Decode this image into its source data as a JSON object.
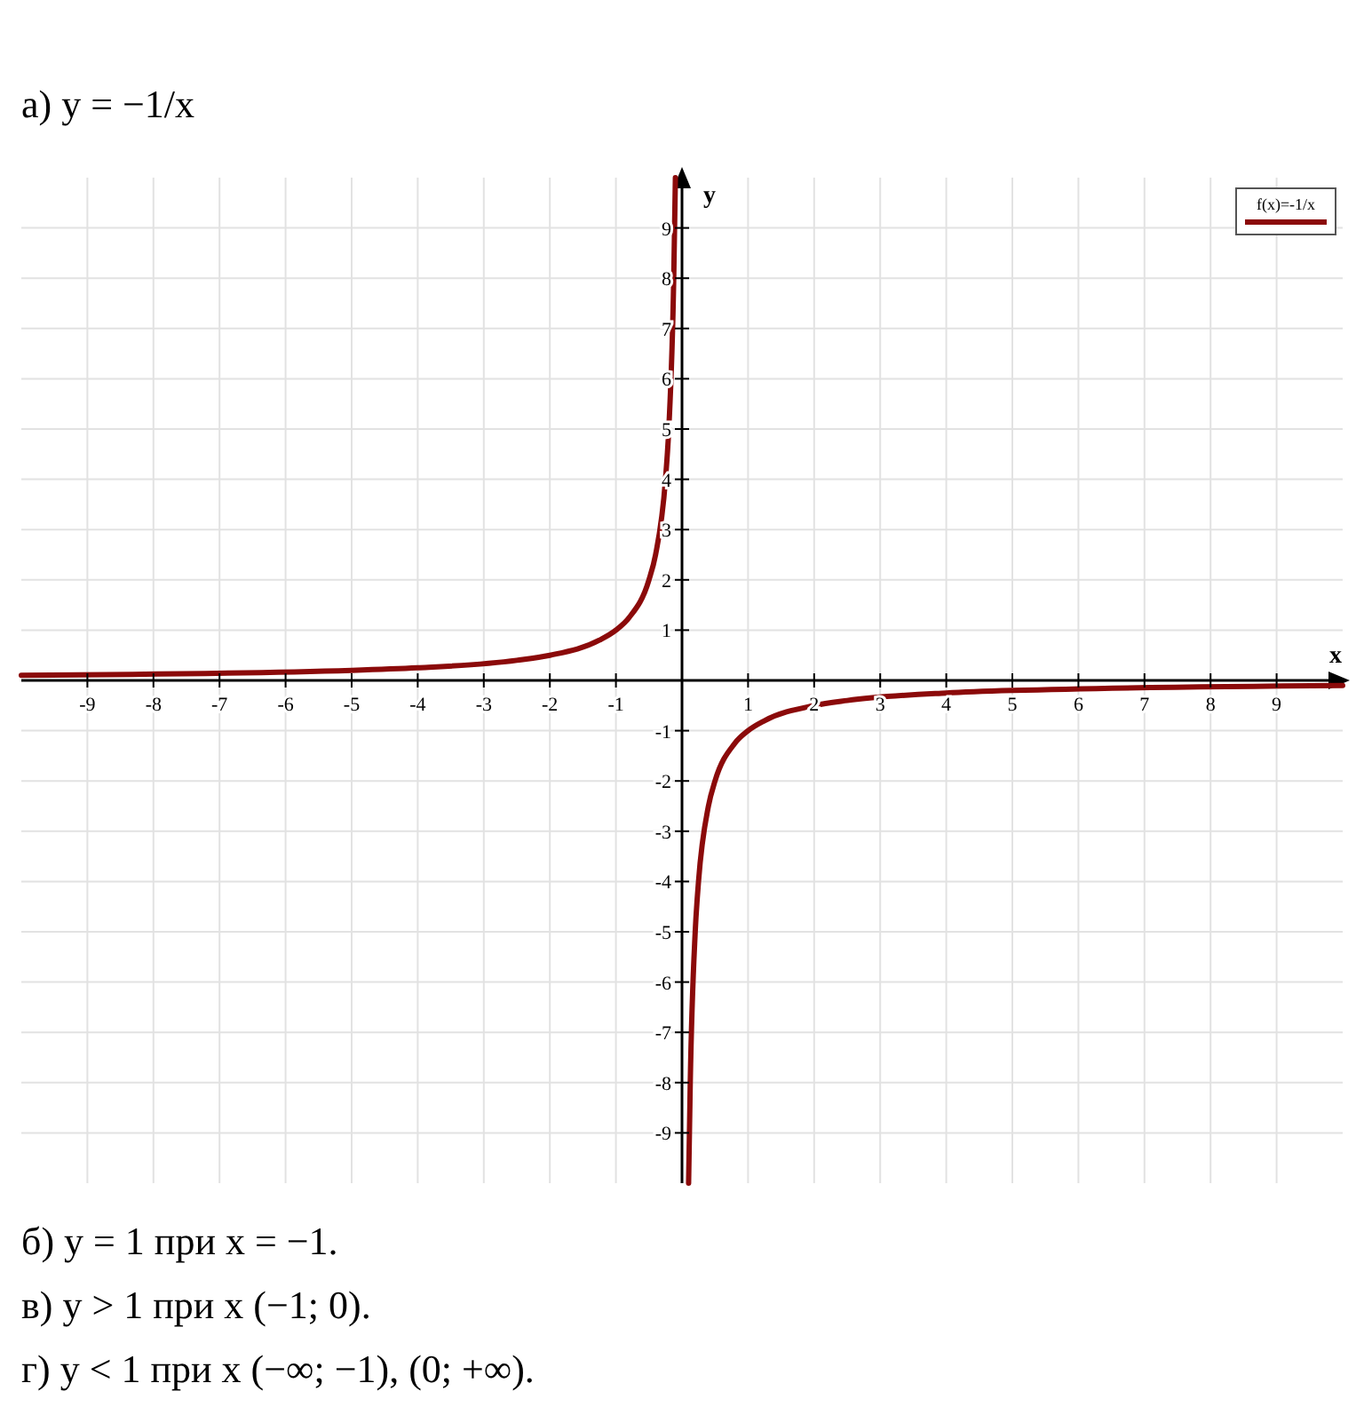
{
  "chart_data": {
    "type": "line",
    "title": "а) y = −1/x",
    "xlabel": "x",
    "ylabel": "y",
    "x": [
      -10,
      -5,
      -4,
      -2.5,
      -2,
      -1.25,
      -1,
      -0.8,
      -0.5,
      -0.4,
      -0.25,
      -0.2,
      -0.125,
      -0.1,
      0,
      0.1,
      0.125,
      0.2,
      0.25,
      0.4,
      0.5,
      0.8,
      1,
      1.25,
      2,
      2.5,
      4,
      5,
      10
    ],
    "series": [
      {
        "name": "f(x)=-1/x",
        "color": "#8b0a0a",
        "values": [
          0.1,
          0.2,
          0.25,
          0.4,
          0.5,
          0.8,
          1,
          1.25,
          2,
          2.5,
          4,
          5,
          8,
          10,
          null,
          -10,
          -8,
          -5,
          -4,
          -2.5,
          -2,
          -1.25,
          -1,
          -0.8,
          -0.5,
          -0.4,
          -0.25,
          -0.2,
          -0.1
        ]
      }
    ],
    "xlim": [
      -10,
      10
    ],
    "ylim": [
      -10,
      10
    ],
    "xticks": [
      -9,
      -8,
      -7,
      -6,
      -5,
      -4,
      -3,
      -2,
      -1,
      1,
      2,
      3,
      4,
      5,
      6,
      7,
      8,
      9
    ],
    "yticks": [
      -9,
      -8,
      -7,
      -6,
      -5,
      -4,
      -3,
      -2,
      -1,
      1,
      2,
      3,
      4,
      5,
      6,
      7,
      8,
      9
    ],
    "grid": true,
    "legend": "top right",
    "marker": "none",
    "line_style": "solid",
    "annotations": [
      "б) y = 1 при x = −1.",
      "в) y > 1 при x (−1; 0).",
      "г) y < 1 при x (−∞; −1), (0; +∞)."
    ]
  }
}
